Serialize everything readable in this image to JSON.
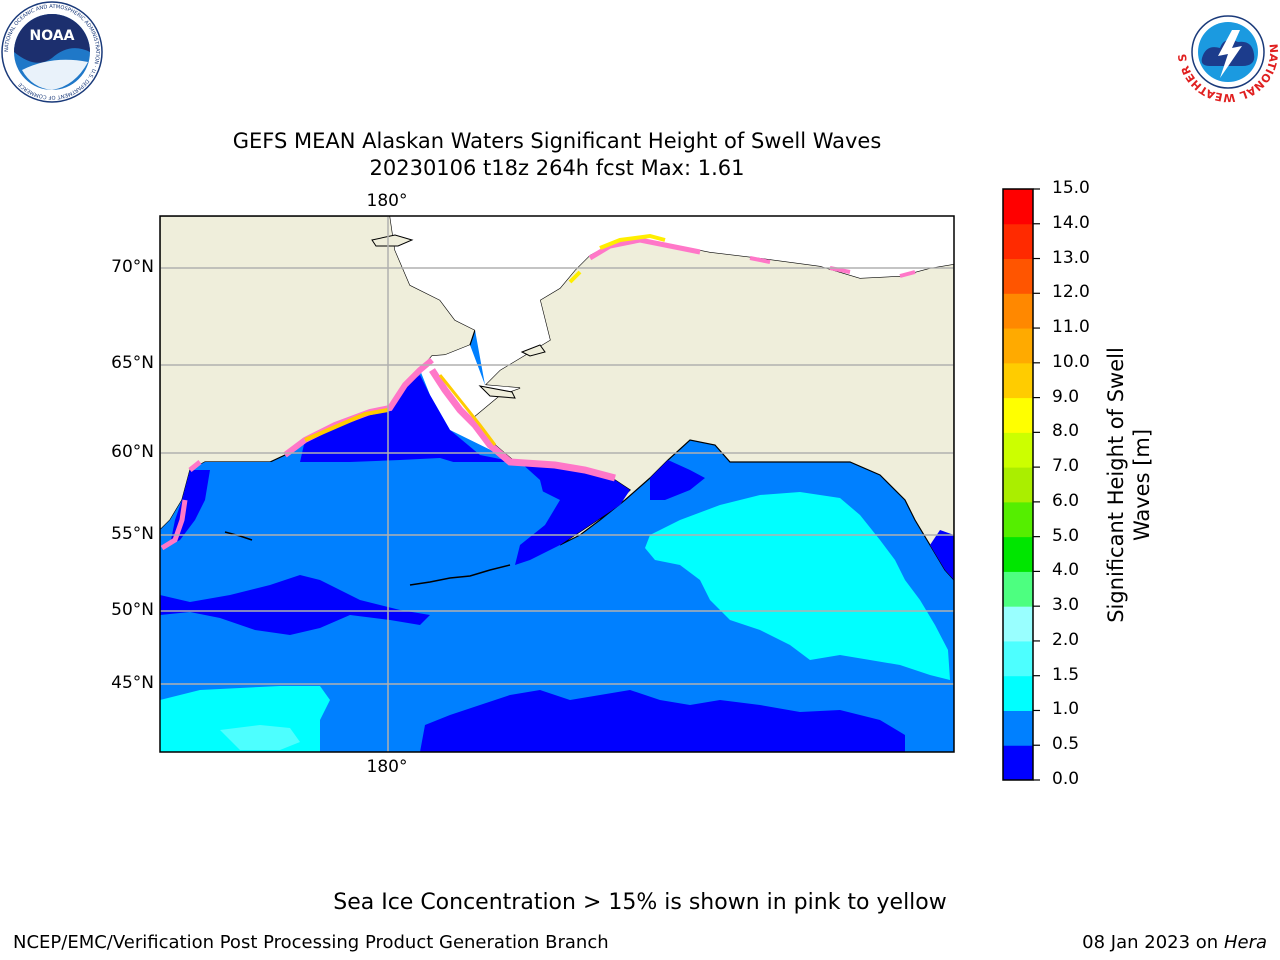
{
  "title_line1": "GEFS MEAN Alaskan Waters Significant Height of Swell Waves",
  "title_line2": "20230106 t18z 264h fcst   Max: 1.61",
  "lon_label_top": "180°",
  "lon_label_bottom": "180°",
  "lat_labels": [
    "70°N",
    "65°N",
    "60°N",
    "55°N",
    "50°N",
    "45°N"
  ],
  "colorbar": {
    "label_line1": "Significant Height of Swell",
    "label_line2": "Waves [m]",
    "ticks": [
      "15.0",
      "14.0",
      "13.0",
      "12.0",
      "11.0",
      "10.0",
      "9.0",
      "8.0",
      "7.0",
      "6.0",
      "5.0",
      "4.0",
      "3.0",
      "2.0",
      "1.5",
      "1.0",
      "0.5",
      "0.0"
    ],
    "colors_bottom_to_top": [
      "#0000ff",
      "#0080ff",
      "#00ffff",
      "#4dffff",
      "#99ffff",
      "#4dff80",
      "#00e600",
      "#55ee00",
      "#aaee00",
      "#ccff00",
      "#ffff00",
      "#ffcc00",
      "#ffaa00",
      "#ff8800",
      "#ff5500",
      "#ff2a00",
      "#ff0000"
    ]
  },
  "colors": {
    "land": "#efeedb",
    "ocean_0_05": "#0000ff",
    "ocean_05_10": "#0080ff",
    "ocean_10_15": "#00ffff",
    "ice_pink": "#ff77c8",
    "ice_yellow": "#ffee00",
    "grid": "#b0b0b0"
  },
  "note": "Sea Ice Concentration > 15% is shown in pink to yellow",
  "footer_left": "NCEP/EMC/Verification Post Processing Product Generation Branch",
  "footer_right_prefix": "08 Jan 2023 on ",
  "footer_right_host": "Hera",
  "logos": {
    "left": "NOAA",
    "left_ring": "NATIONAL OCEANIC AND ATMOSPHERIC ADMINISTRATION · U.S. DEPARTMENT OF COMMERCE",
    "right_ring": "NATIONAL WEATHER SERVICE"
  }
}
